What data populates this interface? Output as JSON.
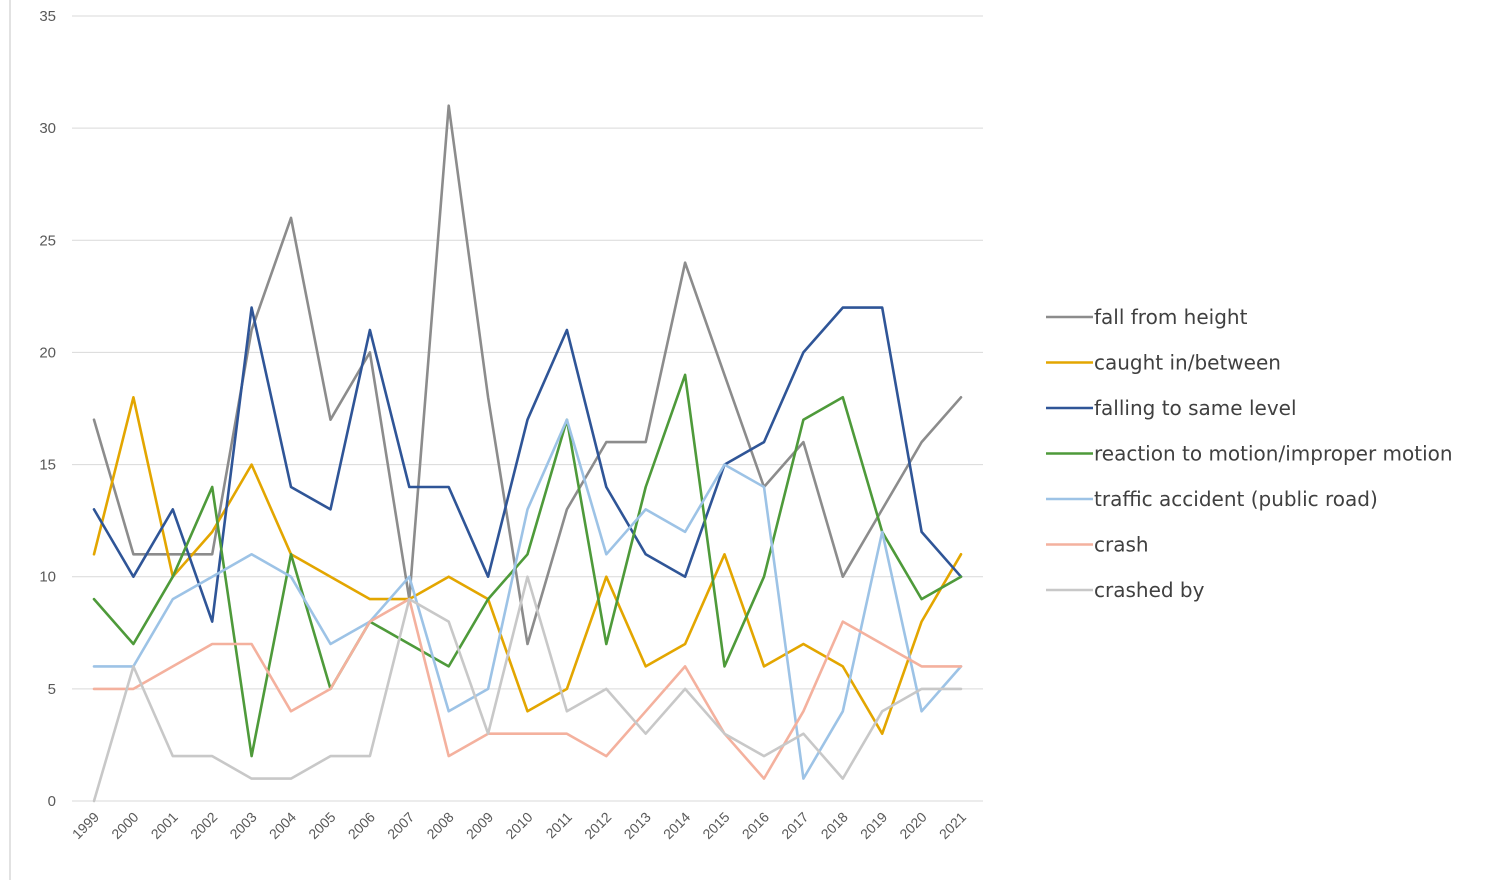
{
  "chart_data": {
    "type": "line",
    "title": "",
    "xlabel": "",
    "ylabel": "",
    "ylim": [
      0,
      35
    ],
    "y_ticks": [
      0,
      5,
      10,
      15,
      20,
      25,
      30,
      35
    ],
    "grid": true,
    "legend_position": "right",
    "x": [
      "1999",
      "2000",
      "2001",
      "2002",
      "2003",
      "2004",
      "2005",
      "2006",
      "2007",
      "2008",
      "2009",
      "2010",
      "2011",
      "2012",
      "2013",
      "2014",
      "2015",
      "2016",
      "2017",
      "2018",
      "2019",
      "2020",
      "2021"
    ],
    "series": [
      {
        "name": "fall from height",
        "color": "#8c8c8c",
        "values": [
          17,
          11,
          11,
          11,
          21,
          26,
          17,
          20,
          9,
          31,
          18,
          7,
          13,
          16,
          16,
          24,
          19,
          14,
          16,
          10,
          13,
          16,
          18
        ]
      },
      {
        "name": "caught in/between",
        "color": "#e3a600",
        "values": [
          11,
          18,
          10,
          12,
          15,
          11,
          10,
          9,
          9,
          10,
          9,
          4,
          5,
          10,
          6,
          7,
          11,
          6,
          7,
          6,
          3,
          8,
          11
        ]
      },
      {
        "name": "falling to same level",
        "color": "#2f5597",
        "values": [
          13,
          10,
          13,
          8,
          22,
          14,
          13,
          21,
          14,
          14,
          10,
          17,
          21,
          14,
          11,
          10,
          15,
          16,
          20,
          22,
          22,
          12,
          10
        ]
      },
      {
        "name": "reaction to motion/improper motion",
        "color": "#4e9a3a",
        "values": [
          9,
          7,
          10,
          14,
          2,
          11,
          5,
          8,
          7,
          6,
          9,
          11,
          17,
          7,
          14,
          19,
          6,
          10,
          17,
          18,
          12,
          9,
          10
        ]
      },
      {
        "name": "traffic accident (public road)",
        "color": "#9dc3e6",
        "values": [
          6,
          6,
          9,
          10,
          11,
          10,
          7,
          8,
          10,
          4,
          5,
          13,
          17,
          11,
          13,
          12,
          15,
          14,
          1,
          4,
          12,
          4,
          6
        ]
      },
      {
        "name": "crash",
        "color": "#f4b19e",
        "values": [
          5,
          5,
          6,
          7,
          7,
          4,
          5,
          8,
          9,
          2,
          3,
          3,
          3,
          2,
          4,
          6,
          3,
          1,
          4,
          8,
          7,
          6,
          6
        ]
      },
      {
        "name": "crashed by",
        "color": "#c8c8c8",
        "values": [
          0,
          6,
          2,
          2,
          1,
          1,
          2,
          2,
          9,
          8,
          3,
          10,
          4,
          5,
          3,
          5,
          3,
          2,
          3,
          1,
          4,
          5,
          5
        ]
      }
    ]
  }
}
